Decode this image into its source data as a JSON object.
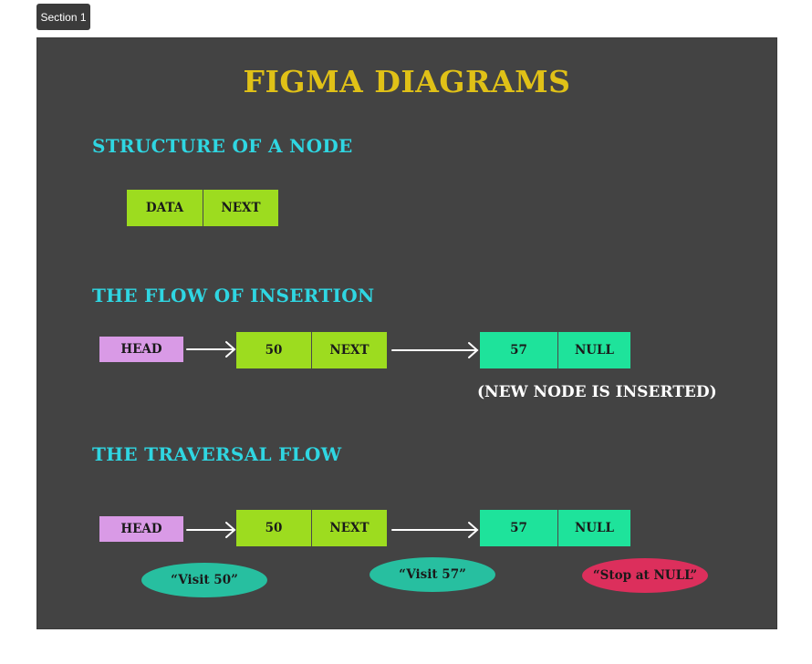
{
  "section_tab": "Section 1",
  "title": "FIGMA DIAGRAMS",
  "structure": {
    "heading": "STRUCTURE OF A NODE",
    "data_label": "DATA",
    "next_label": "NEXT"
  },
  "insertion": {
    "heading": "THE FLOW OF INSERTION",
    "head": "HEAD",
    "node1_value": "50",
    "node1_next": "NEXT",
    "node2_value": "57",
    "node2_next": "NULL",
    "note": "(NEW NODE IS INSERTED)"
  },
  "traversal": {
    "heading": "THE TRAVERSAL FLOW",
    "head": "HEAD",
    "node1_value": "50",
    "node1_next": "NEXT",
    "node2_value": "57",
    "node2_next": "NULL",
    "visit1": "“Visit 50”",
    "visit2": "“Visit 57”",
    "stop": "“Stop at NULL”"
  },
  "colors": {
    "frame": "#434343",
    "title": "#e0c117",
    "heading": "#2fd6e2",
    "node_green": "#9ddc1f",
    "node_teal": "#1ee39b",
    "head_pink": "#d99ae6",
    "bubble_teal": "#27bfa0",
    "bubble_red": "#dc2f5c"
  }
}
